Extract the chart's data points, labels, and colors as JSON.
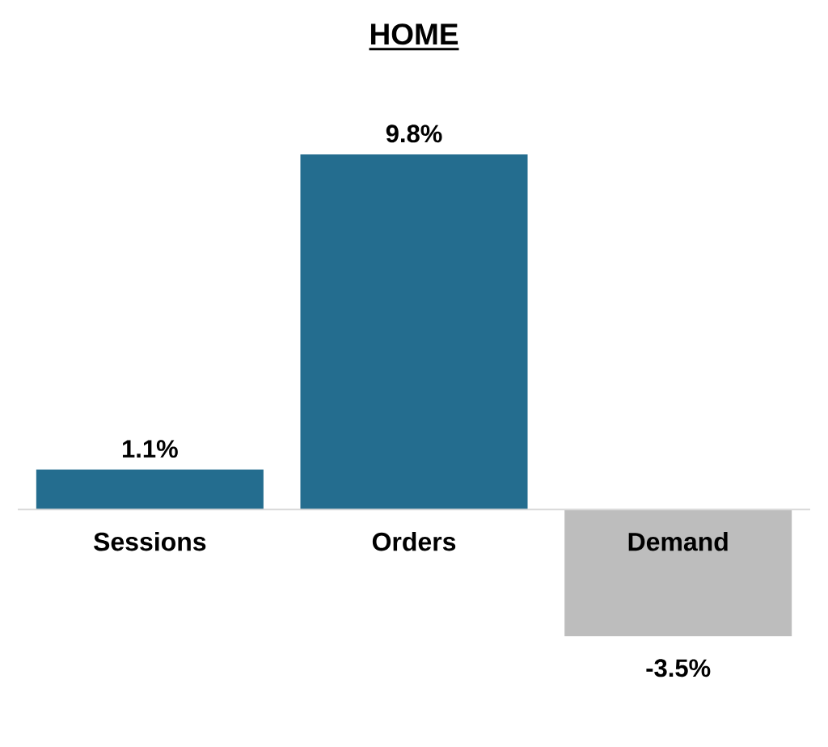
{
  "chart_data": {
    "type": "bar",
    "title": "HOME",
    "categories": [
      "Sessions",
      "Orders",
      "Demand"
    ],
    "values": [
      1.1,
      9.8,
      -3.5
    ],
    "colors": [
      "#246d8f",
      "#246d8f",
      "#bdbdbd"
    ],
    "value_labels": [
      "1.1%",
      "9.8%",
      "-3.5%"
    ],
    "tick_labels": "x"
  }
}
